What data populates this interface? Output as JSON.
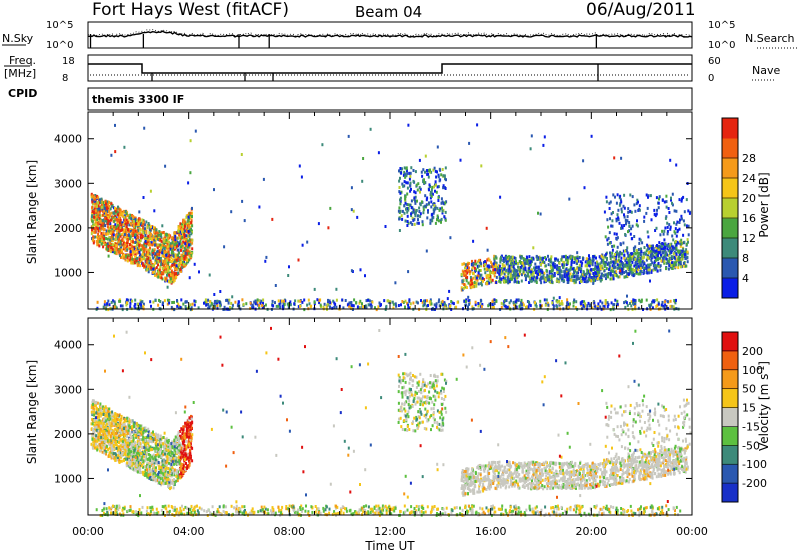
{
  "header": {
    "station": "Fort Hays West (fitACF)",
    "beam": "Beam 04",
    "date": "06/Aug/2011"
  },
  "labels": {
    "nsky": "N.Sky",
    "nsearch": "N.Search",
    "freq_line1": "Freq.",
    "freq_line2": "[MHz]",
    "nave": "Nave",
    "cpid": "CPID",
    "cpid_value": "themis 3300 IF",
    "noise_ticks_left": [
      "10^5",
      "10^0"
    ],
    "noise_ticks_right": [
      "10^5",
      "10^0"
    ],
    "freq_ticks": [
      "18",
      "8"
    ],
    "nave_ticks": [
      "60",
      "0"
    ]
  },
  "chart_data": [
    {
      "type": "heatmap",
      "panel": "power",
      "ylabel": "Slant Range [km]",
      "xlabel": "",
      "x_ticks": [
        "00:00",
        "04:00",
        "08:00",
        "12:00",
        "16:00",
        "20:00",
        "00:00"
      ],
      "xlim_hours": [
        0,
        24
      ],
      "ylim": [
        180,
        4600
      ],
      "y_ticks": [
        1000,
        2000,
        3000,
        4000
      ],
      "colorbar": {
        "label": "Power [dB]",
        "ticks": [
          4,
          8,
          12,
          16,
          20,
          24,
          28
        ],
        "range": [
          0,
          32
        ],
        "colors": [
          "#0a1ee6",
          "#2a58b0",
          "#3d8a7a",
          "#4aa640",
          "#b8d030",
          "#f5c518",
          "#f59a1a",
          "#f06010",
          "#e52510"
        ]
      },
      "regions": [
        {
          "t0": 0.1,
          "t1": 4.2,
          "r0": 700,
          "r1": 3100,
          "level": "high"
        },
        {
          "t0": 12.3,
          "t1": 14.3,
          "r0": 2000,
          "r1": 3500,
          "level": "mid"
        },
        {
          "t0": 14.8,
          "t1": 23.8,
          "r0": 700,
          "r1": 1800,
          "level": "low"
        },
        {
          "t0": 20.5,
          "t1": 23.9,
          "r0": 1500,
          "r1": 2800,
          "level": "low"
        },
        {
          "t0": 1.0,
          "t1": 23.0,
          "r0": 200,
          "r1": 400,
          "level": "ground"
        }
      ]
    },
    {
      "type": "heatmap",
      "panel": "velocity",
      "ylabel": "Slant Range [km]",
      "xlabel": "Time UT",
      "x_ticks": [
        "00:00",
        "04:00",
        "08:00",
        "12:00",
        "16:00",
        "20:00",
        "00:00"
      ],
      "xlim_hours": [
        0,
        24
      ],
      "ylim": [
        180,
        4600
      ],
      "y_ticks": [
        1000,
        2000,
        3000,
        4000
      ],
      "colorbar": {
        "label": "Velocity [m s^-1]",
        "ticks": [
          200,
          100,
          50,
          15,
          -15,
          -50,
          -100,
          -200
        ],
        "colors": [
          "#1830c8",
          "#2a58b0",
          "#3d8a7a",
          "#5cc040",
          "#c8c8c0",
          "#f5c518",
          "#f59a1a",
          "#f06010",
          "#e01010"
        ]
      },
      "regions": [
        {
          "t0": 0.1,
          "t1": 4.2,
          "r0": 700,
          "r1": 3100,
          "level": "mixed"
        },
        {
          "t0": 12.3,
          "t1": 14.3,
          "r0": 2000,
          "r1": 3500,
          "level": "low"
        },
        {
          "t0": 14.8,
          "t1": 23.8,
          "r0": 700,
          "r1": 1800,
          "level": "grey"
        },
        {
          "t0": 1.0,
          "t1": 23.0,
          "r0": 200,
          "r1": 400,
          "level": "ground"
        }
      ]
    }
  ]
}
